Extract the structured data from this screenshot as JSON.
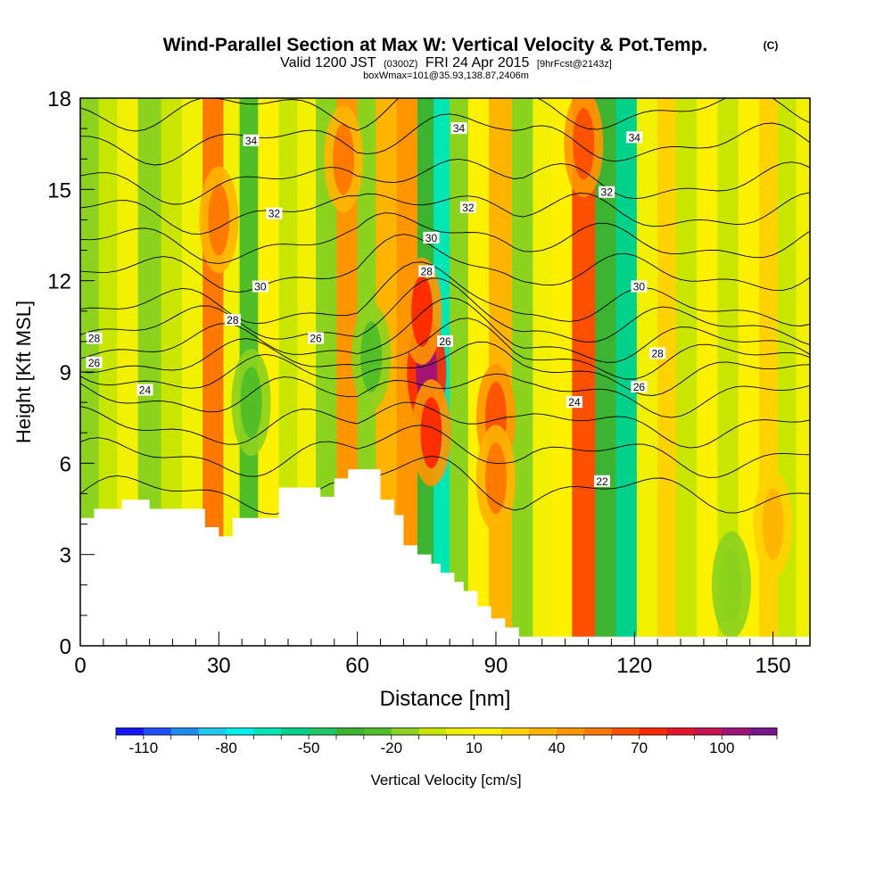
{
  "chart_data": {
    "type": "heatmap",
    "title": "Wind-Parallel Section at Max W: Vertical Velocity & Pot.Temp.",
    "title_mark": "(C)",
    "subtitle": {
      "valid_prefix": "Valid 1200 JST",
      "utc": "(0300Z)",
      "date": "FRI 24 Apr 2015",
      "forecast": "[9hrFcst@2143z]"
    },
    "box_note": "boxWmax=101@35.93,138.87,2406m",
    "xlabel": "Distance [nm]",
    "ylabel": "Height [Kft MSL]",
    "xlim": [
      0,
      158
    ],
    "ylim": [
      0,
      18
    ],
    "x_ticks": [
      "0",
      "30",
      "60",
      "90",
      "120",
      "150"
    ],
    "x_tick_values": [
      0,
      30,
      60,
      90,
      120,
      150
    ],
    "y_ticks": [
      "0",
      "3",
      "6",
      "9",
      "12",
      "15",
      "18"
    ],
    "y_tick_values": [
      0,
      3,
      6,
      9,
      12,
      15,
      18
    ],
    "colorbar": {
      "label": "Vertical Velocity [cm/s]",
      "tick_labels": [
        "-110",
        "-80",
        "-50",
        "-20",
        "10",
        "40",
        "70",
        "100"
      ],
      "tick_values": [
        -110,
        -80,
        -50,
        -20,
        10,
        40,
        70,
        100
      ],
      "levels": [
        -120,
        -110,
        -100,
        -90,
        -80,
        -70,
        -60,
        -50,
        -40,
        -30,
        -20,
        -10,
        0,
        10,
        20,
        30,
        40,
        50,
        60,
        70,
        80,
        90,
        100,
        110,
        120
      ],
      "colors": [
        "#1414ff",
        "#1e50ff",
        "#1e8cf0",
        "#1ec8f0",
        "#00f0f0",
        "#00e6b4",
        "#00d28c",
        "#1ec864",
        "#3cb432",
        "#50be28",
        "#8cd21e",
        "#c8e600",
        "#f0f000",
        "#fff000",
        "#ffd200",
        "#ffb400",
        "#ff9600",
        "#ff7800",
        "#ff5000",
        "#ff2800",
        "#e61428",
        "#c81450",
        "#a01478",
        "#78148c"
      ]
    },
    "vertical_velocity_columns": [
      {
        "x": 2,
        "w": -18
      },
      {
        "x": 6,
        "w": -8
      },
      {
        "x": 10,
        "w": 5
      },
      {
        "x": 15,
        "w": -15
      },
      {
        "x": 20,
        "w": -6
      },
      {
        "x": 24,
        "w": 8
      },
      {
        "x": 29,
        "w": 55
      },
      {
        "x": 33,
        "w": 0
      },
      {
        "x": 36,
        "w": -25
      },
      {
        "x": 41,
        "w": 15
      },
      {
        "x": 45,
        "w": -10
      },
      {
        "x": 49,
        "w": 5
      },
      {
        "x": 53,
        "w": -15
      },
      {
        "x": 58,
        "w": 45
      },
      {
        "x": 62,
        "w": -20
      },
      {
        "x": 66,
        "w": 30
      },
      {
        "x": 71,
        "w": 40
      },
      {
        "x": 75,
        "w": -35
      },
      {
        "x": 78,
        "w": -70
      },
      {
        "x": 82,
        "w": -15
      },
      {
        "x": 86,
        "w": 10
      },
      {
        "x": 91,
        "w": 30
      },
      {
        "x": 96,
        "w": -20
      },
      {
        "x": 100,
        "w": 5
      },
      {
        "x": 104,
        "w": 15
      },
      {
        "x": 109,
        "w": 60
      },
      {
        "x": 114,
        "w": -40
      },
      {
        "x": 118,
        "w": -55
      },
      {
        "x": 123,
        "w": 0
      },
      {
        "x": 127,
        "w": 25
      },
      {
        "x": 131,
        "w": -5
      },
      {
        "x": 136,
        "w": 10
      },
      {
        "x": 140,
        "w": -10
      },
      {
        "x": 145,
        "w": 15
      },
      {
        "x": 149,
        "w": 20
      },
      {
        "x": 153,
        "w": -5
      },
      {
        "x": 157,
        "w": 5
      }
    ],
    "vertical_velocity_cells": [
      {
        "x": 75,
        "y": 9.0,
        "w": 101
      },
      {
        "x": 74,
        "y": 11.0,
        "w": 70
      },
      {
        "x": 76,
        "y": 7.0,
        "w": 70
      },
      {
        "x": 90,
        "y": 7.5,
        "w": 60
      },
      {
        "x": 90,
        "y": 5.5,
        "w": 50
      },
      {
        "x": 30,
        "y": 14.0,
        "w": 55
      },
      {
        "x": 109,
        "y": 16.5,
        "w": 65
      },
      {
        "x": 57,
        "y": 16.0,
        "w": 50
      },
      {
        "x": 37,
        "y": 8.0,
        "w": -25
      },
      {
        "x": 63,
        "y": 9.5,
        "w": -25
      },
      {
        "x": 141,
        "y": 2.0,
        "w": -20
      },
      {
        "x": 150,
        "y": 4.0,
        "w": 30
      }
    ],
    "terrain_kft": [
      {
        "x": 0,
        "h": 4.2
      },
      {
        "x": 3,
        "h": 4.5
      },
      {
        "x": 9,
        "h": 4.8
      },
      {
        "x": 15,
        "h": 4.5
      },
      {
        "x": 27,
        "h": 3.9
      },
      {
        "x": 30,
        "h": 3.6
      },
      {
        "x": 33,
        "h": 4.2
      },
      {
        "x": 43,
        "h": 5.2
      },
      {
        "x": 52,
        "h": 4.9
      },
      {
        "x": 55,
        "h": 5.5
      },
      {
        "x": 58,
        "h": 5.8
      },
      {
        "x": 65,
        "h": 4.8
      },
      {
        "x": 68,
        "h": 4.3
      },
      {
        "x": 70,
        "h": 3.3
      },
      {
        "x": 73,
        "h": 3.0
      },
      {
        "x": 76,
        "h": 2.7
      },
      {
        "x": 78,
        "h": 2.4
      },
      {
        "x": 81,
        "h": 2.1
      },
      {
        "x": 83,
        "h": 1.8
      },
      {
        "x": 86,
        "h": 1.3
      },
      {
        "x": 89,
        "h": 0.9
      },
      {
        "x": 92,
        "h": 0.6
      },
      {
        "x": 95,
        "h": 0.3
      },
      {
        "x": 158,
        "h": 0.3
      }
    ],
    "pot_temp_contours": [
      {
        "value": 22,
        "y": 5.0
      },
      {
        "value": 23,
        "y": 6.2
      },
      {
        "value": 24,
        "y": 7.2
      },
      {
        "value": 25,
        "y": 8.2
      },
      {
        "value": 26,
        "y": 8.9
      },
      {
        "value": 27,
        "y": 9.4
      },
      {
        "value": 28,
        "y": 9.9
      },
      {
        "value": 29,
        "y": 10.5
      },
      {
        "value": 30,
        "y": 11.1
      },
      {
        "value": 31,
        "y": 12.2
      },
      {
        "value": 32,
        "y": 13.2
      },
      {
        "value": 33,
        "y": 14.2
      },
      {
        "value": 34,
        "y": 15.2
      },
      {
        "value": 35,
        "y": 16.5
      },
      {
        "value": 36,
        "y": 17.6
      }
    ],
    "contour_labels": [
      {
        "text": "34",
        "x": 37,
        "y": 16.6
      },
      {
        "text": "32",
        "x": 42,
        "y": 14.2
      },
      {
        "text": "30",
        "x": 39,
        "y": 11.8
      },
      {
        "text": "28",
        "x": 33,
        "y": 10.7
      },
      {
        "text": "28",
        "x": 3,
        "y": 10.1
      },
      {
        "text": "26",
        "x": 3,
        "y": 9.3
      },
      {
        "text": "24",
        "x": 14,
        "y": 8.4
      },
      {
        "text": "26",
        "x": 51,
        "y": 10.1
      },
      {
        "text": "34",
        "x": 82,
        "y": 17.0
      },
      {
        "text": "32",
        "x": 84,
        "y": 14.4
      },
      {
        "text": "30",
        "x": 76,
        "y": 13.4
      },
      {
        "text": "28",
        "x": 75,
        "y": 12.3
      },
      {
        "text": "26",
        "x": 79,
        "y": 10.0
      },
      {
        "text": "34",
        "x": 120,
        "y": 16.7
      },
      {
        "text": "32",
        "x": 114,
        "y": 14.9
      },
      {
        "text": "30",
        "x": 121,
        "y": 11.8
      },
      {
        "text": "28",
        "x": 125,
        "y": 9.6
      },
      {
        "text": "26",
        "x": 121,
        "y": 8.5
      },
      {
        "text": "24",
        "x": 107,
        "y": 8.0
      },
      {
        "text": "22",
        "x": 113,
        "y": 5.4
      }
    ],
    "grid": false
  }
}
